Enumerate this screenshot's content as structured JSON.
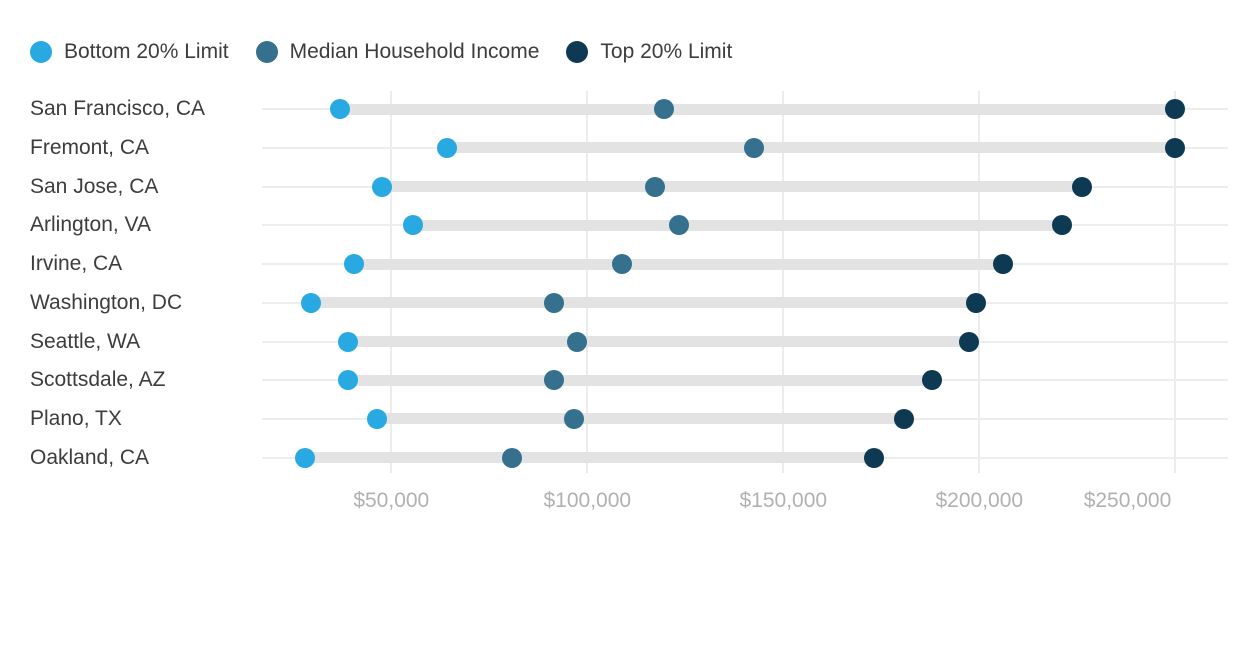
{
  "chart_data": {
    "type": "scatter",
    "subtype": "dumbbell-dot-plot",
    "title": "",
    "categories": [
      "San Francisco, CA",
      "Fremont, CA",
      "San Jose, CA",
      "Arlington, VA",
      "Irvine, CA",
      "Washington, DC",
      "Seattle, WA",
      "Scottsdale, AZ",
      "Plano, TX",
      "Oakland, CA"
    ],
    "series": [
      {
        "name": "Bottom 20% Limit",
        "color": "#29a9e1",
        "values": [
          36800,
          64300,
          47700,
          55600,
          40400,
          29600,
          38900,
          38900,
          46400,
          27900
        ]
      },
      {
        "name": "Median Household Income",
        "color": "#35708e",
        "values": [
          119500,
          142600,
          117300,
          123300,
          108800,
          91400,
          97300,
          91600,
          96600,
          80900
        ]
      },
      {
        "name": "Top 20% Limit",
        "color": "#0d3a52",
        "values": [
          250000,
          250000,
          226300,
          221200,
          206000,
          199200,
          197400,
          187900,
          180900,
          173100
        ]
      }
    ],
    "x_axis": {
      "min": 0,
      "max": 263000,
      "grid": true,
      "ticks": [
        {
          "value": 50000,
          "label": "$50,000"
        },
        {
          "value": 100000,
          "label": "$100,000"
        },
        {
          "value": 150000,
          "label": "$150,000"
        },
        {
          "value": 200000,
          "label": "$200,000"
        },
        {
          "value": 250000,
          "label": "$250,000"
        }
      ]
    },
    "legend_position": "top-left",
    "styles": {
      "background": "#ffffff",
      "connector_color": "#e3e3e3",
      "gridline_color": "#ececec",
      "axis_text_color": "#b1b1b1",
      "label_text_color": "#3d3d3d"
    }
  }
}
